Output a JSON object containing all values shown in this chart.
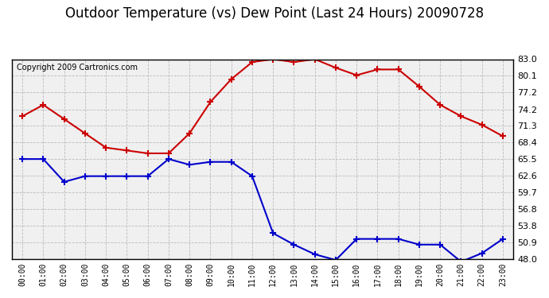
{
  "title": "Outdoor Temperature (vs) Dew Point (Last 24 Hours) 20090728",
  "copyright": "Copyright 2009 Cartronics.com",
  "x_labels": [
    "00:00",
    "01:00",
    "02:00",
    "03:00",
    "04:00",
    "05:00",
    "06:00",
    "07:00",
    "08:00",
    "09:00",
    "10:00",
    "11:00",
    "12:00",
    "13:00",
    "14:00",
    "15:00",
    "16:00",
    "17:00",
    "18:00",
    "19:00",
    "20:00",
    "21:00",
    "22:00",
    "23:00"
  ],
  "temp_data": [
    73.0,
    75.0,
    72.5,
    70.0,
    67.5,
    67.0,
    66.5,
    66.5,
    70.0,
    75.5,
    79.5,
    82.5,
    83.0,
    82.5,
    83.0,
    81.5,
    80.2,
    81.2,
    81.2,
    78.2,
    75.0,
    73.0,
    71.5,
    69.5
  ],
  "dew_data": [
    65.5,
    65.5,
    61.5,
    62.5,
    62.5,
    62.5,
    62.5,
    65.5,
    64.5,
    65.0,
    65.0,
    62.5,
    52.5,
    50.5,
    48.8,
    47.8,
    51.5,
    51.5,
    51.5,
    50.5,
    50.5,
    47.5,
    49.0,
    51.5
  ],
  "temp_color": "#cc0000",
  "dew_color": "#0000cc",
  "bg_color": "#ffffff",
  "plot_bg_color": "#f0f0f0",
  "grid_color": "#bbbbbb",
  "ylim_min": 48.0,
  "ylim_max": 83.0,
  "yticks": [
    48.0,
    50.9,
    53.8,
    56.8,
    59.7,
    62.6,
    65.5,
    68.4,
    71.3,
    74.2,
    77.2,
    80.1,
    83.0
  ],
  "title_fontsize": 12,
  "copyright_fontsize": 7
}
